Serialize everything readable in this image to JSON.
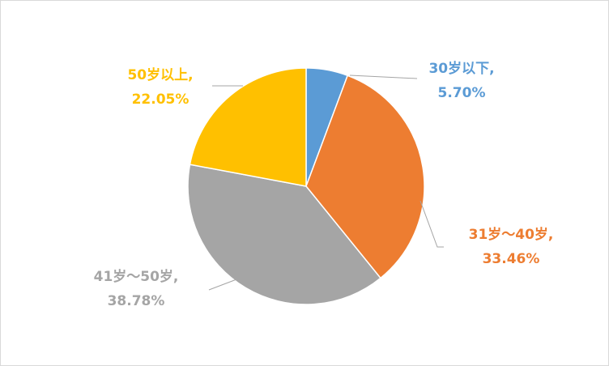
{
  "chart_data": {
    "type": "pie",
    "categories": [
      "30岁以下,",
      "31岁～40岁,",
      "41岁～50岁,",
      "50岁以上,"
    ],
    "values": [
      5.7,
      33.46,
      38.78,
      22.05
    ],
    "value_labels": [
      "5.70%",
      "33.46%",
      "38.78%",
      "22.05%"
    ],
    "colors": [
      "#5b9bd5",
      "#ed7d31",
      "#a5a5a5",
      "#ffc000"
    ]
  }
}
